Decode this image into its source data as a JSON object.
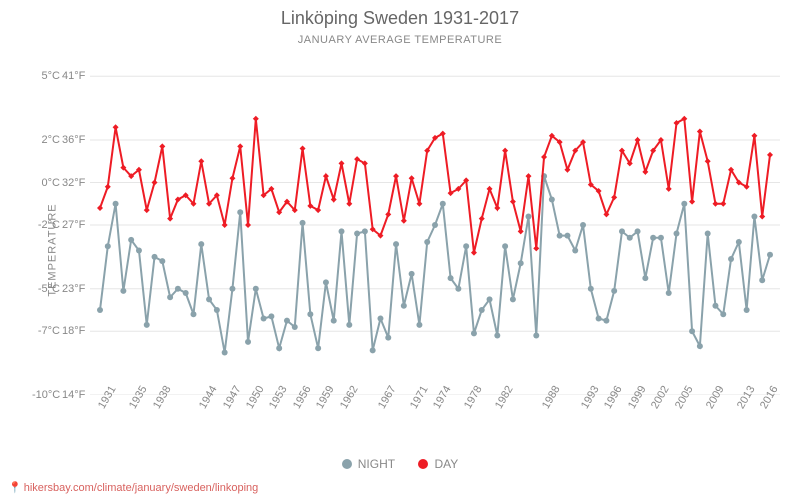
{
  "title": "Linköping Sweden 1931-2017",
  "subtitle": "JANUARY AVERAGE TEMPERATURE",
  "ylabel": "TEMPERATURE",
  "source": "hikersbay.com/climate/january/sweden/linkoping",
  "legend": {
    "night": "NIGHT",
    "day": "DAY"
  },
  "chart": {
    "type": "line",
    "background_color": "#ffffff",
    "grid_color": "#e6e6e6",
    "series_colors": {
      "day": "#ee1c25",
      "night": "#8aa2ab"
    },
    "marker": {
      "day": "diamond",
      "night": "circle",
      "size": 6
    },
    "line_width": 2,
    "title_fontsize": 18,
    "subtitle_fontsize": 11,
    "label_fontsize": 11,
    "y_domain_c": [
      -10,
      6
    ],
    "y_ticks_c": [
      -10,
      -7,
      -5,
      -2,
      0,
      2,
      5
    ],
    "y_ticks_f": [
      14,
      18,
      23,
      27,
      32,
      36,
      41
    ],
    "x_ticks": [
      1931,
      1935,
      1938,
      1944,
      1947,
      1950,
      1953,
      1956,
      1959,
      1962,
      1967,
      1971,
      1974,
      1978,
      1982,
      1988,
      1993,
      1996,
      1999,
      2002,
      2005,
      2009,
      2013,
      2016
    ],
    "years": [
      1931,
      1932,
      1933,
      1934,
      1935,
      1936,
      1937,
      1938,
      1939,
      1940,
      1941,
      1942,
      1943,
      1944,
      1945,
      1946,
      1947,
      1948,
      1949,
      1950,
      1951,
      1952,
      1953,
      1954,
      1955,
      1956,
      1957,
      1958,
      1959,
      1960,
      1961,
      1962,
      1963,
      1964,
      1965,
      1966,
      1967,
      1968,
      1969,
      1970,
      1971,
      1972,
      1973,
      1974,
      1975,
      1976,
      1977,
      1978,
      1979,
      1980,
      1981,
      1982,
      1983,
      1984,
      1985,
      1986,
      1987,
      1988,
      1989,
      1990,
      1991,
      1992,
      1993,
      1994,
      1995,
      1996,
      1997,
      1998,
      1999,
      2000,
      2001,
      2002,
      2003,
      2004,
      2005,
      2006,
      2007,
      2008,
      2009,
      2010,
      2011,
      2012,
      2013,
      2014,
      2015,
      2016,
      2017
    ],
    "day": [
      -1.2,
      -0.2,
      2.6,
      0.7,
      0.3,
      0.6,
      -1.3,
      0.0,
      1.7,
      -1.7,
      -0.8,
      -0.6,
      -1.0,
      1.0,
      -1.0,
      -0.6,
      -2.0,
      0.2,
      1.7,
      -2.0,
      3.0,
      -0.6,
      -0.3,
      -1.4,
      -0.9,
      -1.3,
      1.6,
      -1.1,
      -1.3,
      0.3,
      -0.8,
      0.9,
      -1.0,
      1.1,
      0.9,
      -2.2,
      -2.5,
      -1.5,
      0.3,
      -1.8,
      0.2,
      -1.0,
      1.5,
      2.1,
      2.3,
      -0.5,
      -0.3,
      0.1,
      -3.3,
      -1.7,
      -0.3,
      -1.2,
      1.5,
      -0.9,
      -2.3,
      0.3,
      -3.1,
      1.2,
      2.2,
      1.9,
      0.6,
      1.5,
      1.9,
      -0.1,
      -0.4,
      -1.5,
      -0.7,
      1.5,
      0.9,
      2.0,
      0.5,
      1.5,
      2.0,
      -0.3,
      2.8,
      3.0,
      -0.9,
      2.4,
      1.0,
      -1.0,
      -1.0,
      0.6,
      0.0,
      -0.2,
      2.2,
      -1.6,
      1.3
    ],
    "night": [
      -6.0,
      -3.0,
      -1.0,
      -5.1,
      -2.7,
      -3.2,
      -6.7,
      -3.5,
      -3.7,
      -5.4,
      -5.0,
      -5.2,
      -6.2,
      -2.9,
      -5.5,
      -6.0,
      -8.0,
      -5.0,
      -1.4,
      -7.5,
      -5.0,
      -6.4,
      -6.3,
      -7.8,
      -6.5,
      -6.8,
      -1.9,
      -6.2,
      -7.8,
      -4.7,
      -6.5,
      -2.3,
      -6.7,
      -2.4,
      -2.3,
      -7.9,
      -6.4,
      -7.3,
      -2.9,
      -5.8,
      -4.3,
      -6.7,
      -2.8,
      -2.0,
      -1.0,
      -4.5,
      -5.0,
      -3.0,
      -7.1,
      -6.0,
      -5.5,
      -7.2,
      -3.0,
      -5.5,
      -3.8,
      -1.6,
      -7.2,
      0.3,
      -0.8,
      -2.5,
      -2.5,
      -3.2,
      -2.0,
      -5.0,
      -6.4,
      -6.5,
      -5.1,
      -2.3,
      -2.6,
      -2.3,
      -4.5,
      -2.6,
      -2.6,
      -5.2,
      -2.4,
      -1.0,
      -7.0,
      -7.7,
      -2.4,
      -5.8,
      -6.2,
      -3.6,
      -2.8,
      -6.0,
      -1.6,
      -4.6,
      -3.4
    ]
  }
}
